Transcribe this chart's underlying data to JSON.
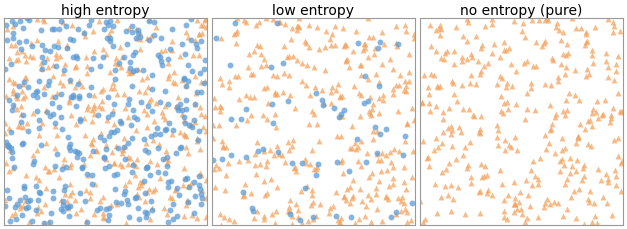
{
  "panels": [
    {
      "title": "high entropy",
      "n_class1": 350,
      "n_class2": 350,
      "class1_marker": "o",
      "class2_marker": "^",
      "class1_color": "#5B9BD5",
      "class2_color": "#F4A460",
      "seed1": 42,
      "seed2": 43
    },
    {
      "title": "low entropy",
      "n_class1": 60,
      "n_class2": 350,
      "class1_marker": "o",
      "class2_marker": "^",
      "class1_color": "#5B9BD5",
      "class2_color": "#F4A460",
      "seed1": 10,
      "seed2": 20
    },
    {
      "title": "no entropy (pure)",
      "n_class1": 0,
      "n_class2": 350,
      "class1_marker": "o",
      "class2_marker": "^",
      "class1_color": "#5B9BD5",
      "class2_color": "#F4A460",
      "seed1": 7,
      "seed2": 99
    }
  ],
  "background_color": "#ffffff",
  "title_fontsize": 10,
  "marker_size": 18,
  "alpha": 0.75,
  "xlim": [
    0,
    1
  ],
  "ylim": [
    0,
    1
  ]
}
